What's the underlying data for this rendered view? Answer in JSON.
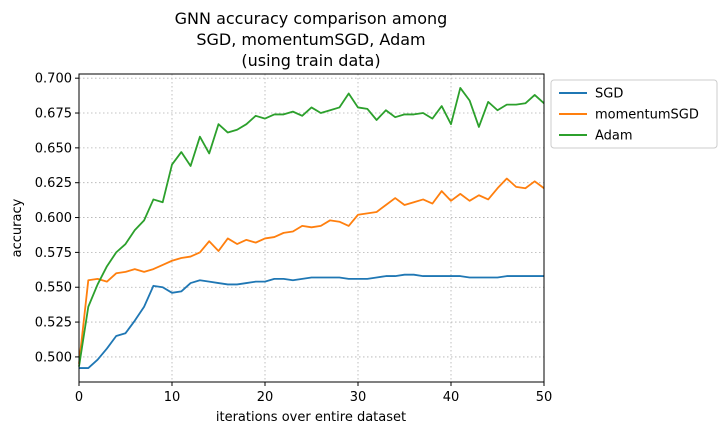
{
  "chart_data": {
    "type": "line",
    "title_lines": [
      "GNN accuracy comparison among",
      "SGD, momentumSGD, Adam",
      "(using train data)"
    ],
    "xlabel": "iterations over entire dataset",
    "ylabel": "accuracy",
    "xlim": [
      0,
      50
    ],
    "ylim": [
      0.482,
      0.703
    ],
    "xticks": [
      0,
      10,
      20,
      30,
      40,
      50
    ],
    "yticks": [
      0.5,
      0.525,
      0.55,
      0.575,
      0.6,
      0.625,
      0.65,
      0.675,
      0.7
    ],
    "ytick_labels": [
      "0.500",
      "0.525",
      "0.550",
      "0.575",
      "0.600",
      "0.625",
      "0.650",
      "0.675",
      "0.700"
    ],
    "grid": true,
    "grid_style": "dotted",
    "legend_position": "outside-upper-right",
    "x": [
      0,
      1,
      2,
      3,
      4,
      5,
      6,
      7,
      8,
      9,
      10,
      11,
      12,
      13,
      14,
      15,
      16,
      17,
      18,
      19,
      20,
      21,
      22,
      23,
      24,
      25,
      26,
      27,
      28,
      29,
      30,
      31,
      32,
      33,
      34,
      35,
      36,
      37,
      38,
      39,
      40,
      41,
      42,
      43,
      44,
      45,
      46,
      47,
      48,
      49,
      50
    ],
    "series": [
      {
        "name": "SGD",
        "color": "#1f77b4",
        "values": [
          0.492,
          0.492,
          0.498,
          0.506,
          0.515,
          0.517,
          0.526,
          0.536,
          0.551,
          0.55,
          0.546,
          0.547,
          0.553,
          0.555,
          0.554,
          0.553,
          0.552,
          0.552,
          0.553,
          0.554,
          0.554,
          0.556,
          0.556,
          0.555,
          0.556,
          0.557,
          0.557,
          0.557,
          0.557,
          0.556,
          0.556,
          0.556,
          0.557,
          0.558,
          0.558,
          0.559,
          0.559,
          0.558,
          0.558,
          0.558,
          0.558,
          0.558,
          0.557,
          0.557,
          0.557,
          0.557,
          0.558,
          0.558,
          0.558,
          0.558,
          0.558
        ]
      },
      {
        "name": "momentumSGD",
        "color": "#ff7f0e",
        "values": [
          0.495,
          0.555,
          0.556,
          0.554,
          0.56,
          0.561,
          0.563,
          0.561,
          0.563,
          0.566,
          0.569,
          0.571,
          0.572,
          0.575,
          0.583,
          0.576,
          0.585,
          0.581,
          0.584,
          0.582,
          0.585,
          0.586,
          0.589,
          0.59,
          0.594,
          0.593,
          0.594,
          0.598,
          0.597,
          0.594,
          0.602,
          0.603,
          0.604,
          0.609,
          0.614,
          0.609,
          0.611,
          0.613,
          0.61,
          0.619,
          0.612,
          0.617,
          0.612,
          0.616,
          0.613,
          0.621,
          0.628,
          0.622,
          0.621,
          0.626,
          0.621
        ]
      },
      {
        "name": "Adam",
        "color": "#2ca02c",
        "values": [
          0.493,
          0.536,
          0.552,
          0.565,
          0.575,
          0.581,
          0.591,
          0.598,
          0.613,
          0.611,
          0.638,
          0.647,
          0.637,
          0.658,
          0.646,
          0.667,
          0.661,
          0.663,
          0.667,
          0.673,
          0.671,
          0.674,
          0.674,
          0.676,
          0.673,
          0.679,
          0.675,
          0.677,
          0.679,
          0.689,
          0.679,
          0.678,
          0.67,
          0.677,
          0.672,
          0.674,
          0.674,
          0.675,
          0.671,
          0.68,
          0.667,
          0.693,
          0.684,
          0.665,
          0.683,
          0.677,
          0.681,
          0.681,
          0.682,
          0.688,
          0.682
        ]
      }
    ]
  }
}
